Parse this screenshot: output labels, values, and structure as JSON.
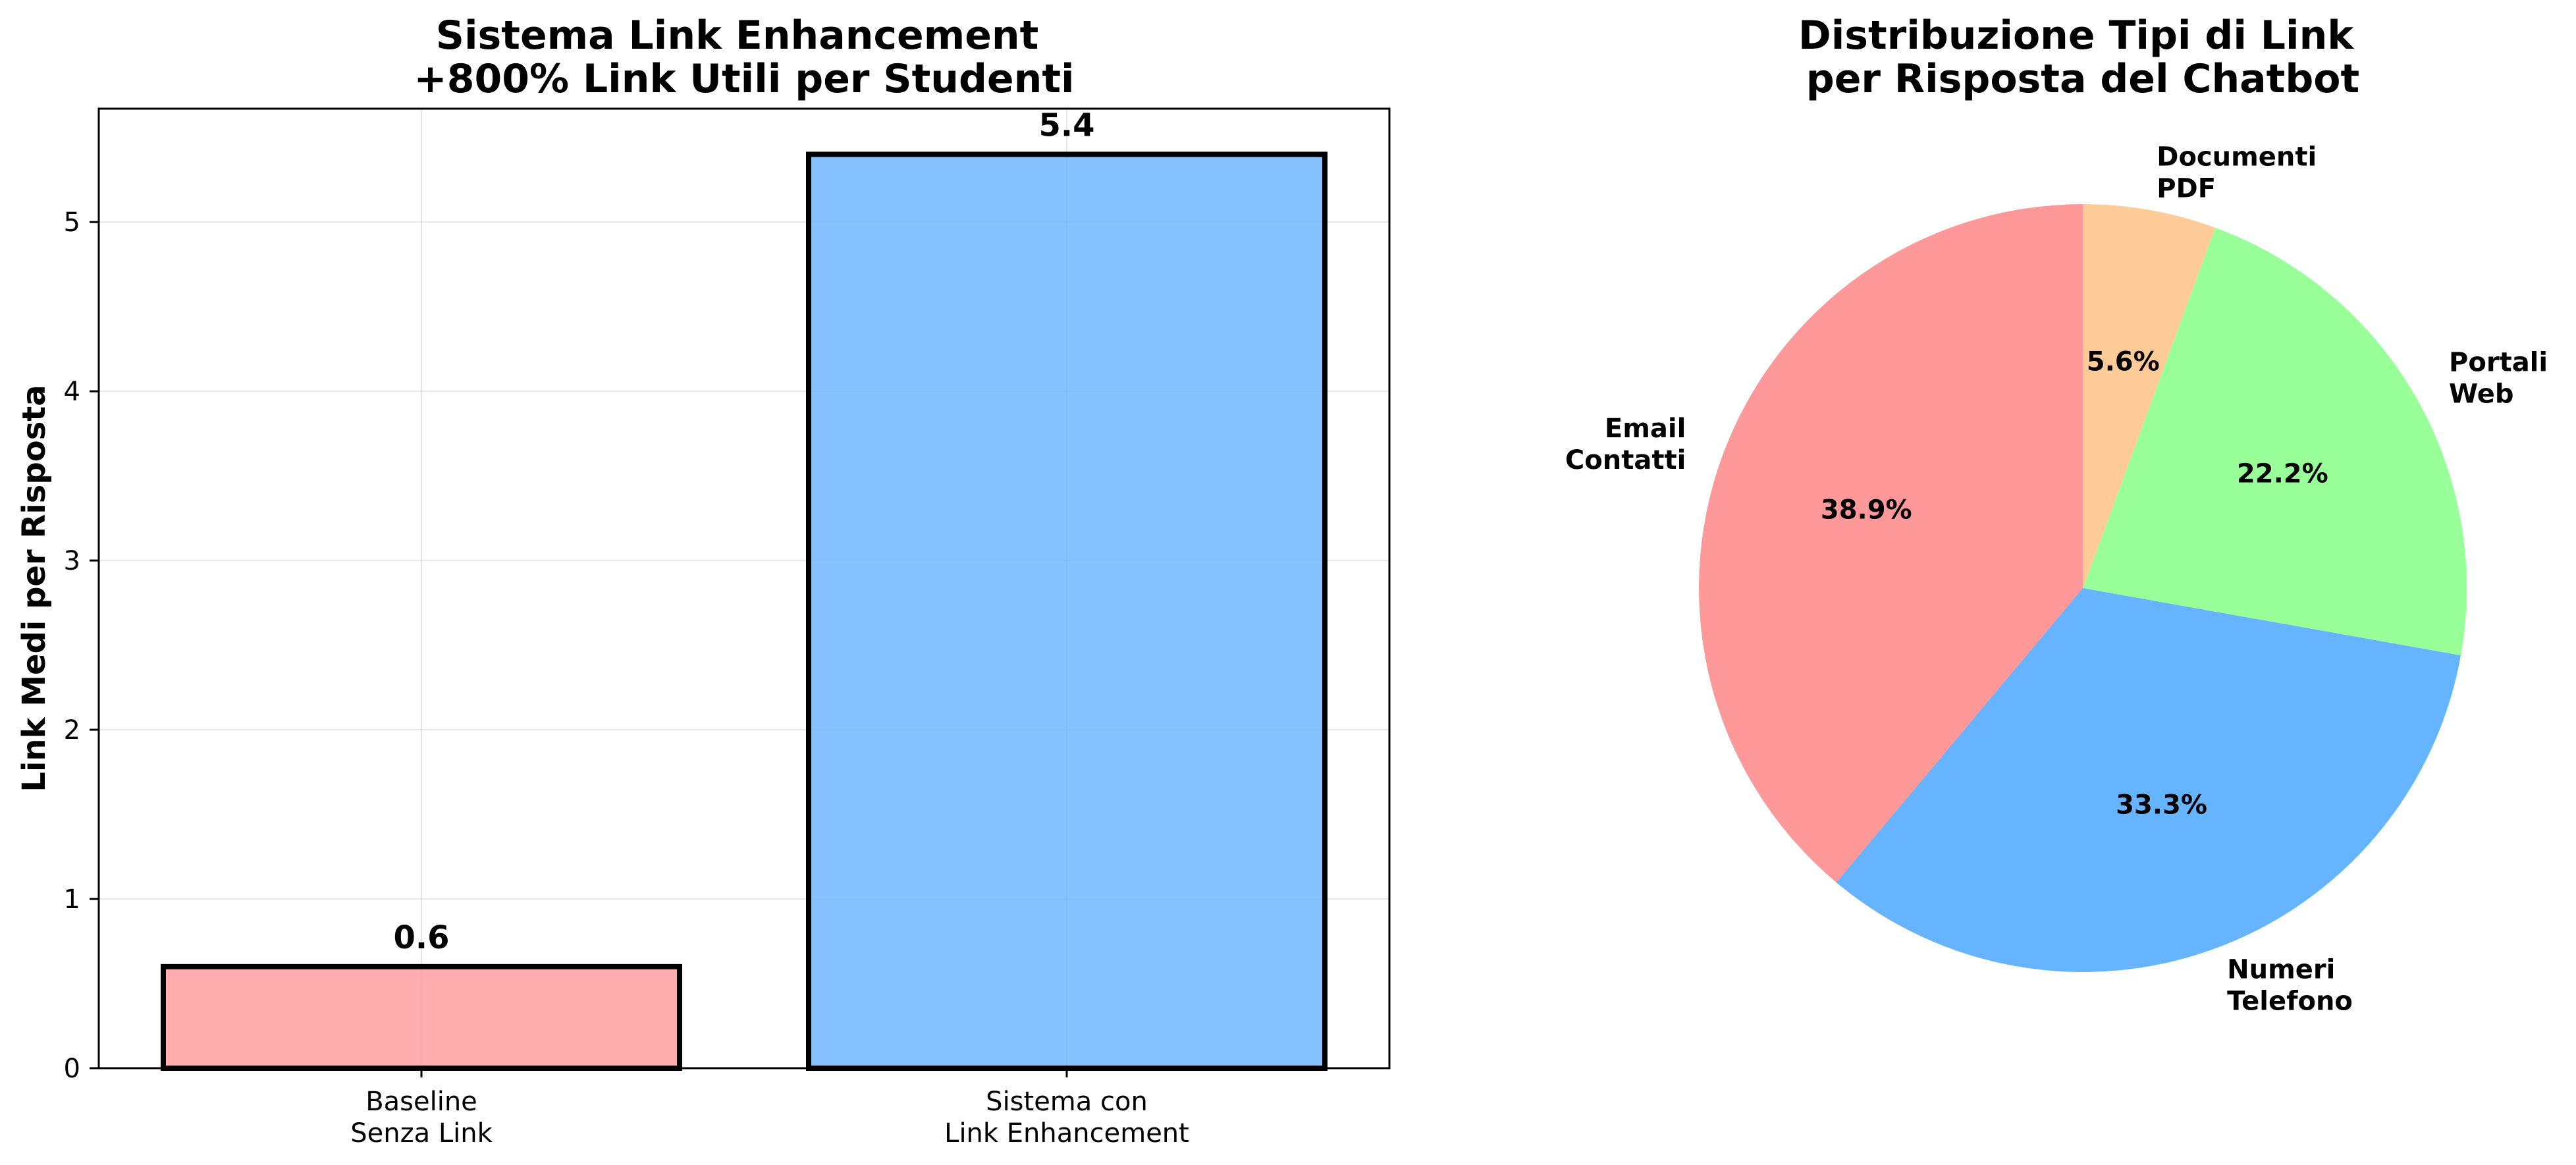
{
  "chart_data": [
    {
      "type": "bar",
      "title": [
        "Sistema Link Enhancement",
        "+800% Link Utili per Studenti"
      ],
      "ylabel": "Link Medi per Risposta",
      "xlabel": "",
      "categories": [
        [
          "Baseline",
          "Senza Link"
        ],
        [
          "Sistema con",
          "Link Enhancement"
        ]
      ],
      "values": [
        0.6,
        5.4
      ],
      "value_labels": [
        "0.6",
        "5.4"
      ],
      "colors": [
        "#ff9999",
        "#66b3ff"
      ],
      "ylim": [
        0,
        5.67
      ],
      "yticks": [
        0,
        1,
        2,
        3,
        4,
        5
      ],
      "ytick_labels": [
        "0",
        "1",
        "2",
        "3",
        "4",
        "5"
      ],
      "grid": true
    },
    {
      "type": "pie",
      "title": [
        "Distribuzione Tipi di Link",
        "per Risposta del Chatbot"
      ],
      "start_angle_deg": 90,
      "direction": "counterclockwise",
      "slices": [
        {
          "label": [
            "Email",
            "Contatti"
          ],
          "value": 38.9,
          "pct": "38.9%",
          "color": "#ff9999"
        },
        {
          "label": [
            "Numeri",
            "Telefono"
          ],
          "value": 33.3,
          "pct": "33.3%",
          "color": "#66b3ff"
        },
        {
          "label": [
            "Portali",
            "Web"
          ],
          "value": 22.2,
          "pct": "22.2%",
          "color": "#99ff99"
        },
        {
          "label": [
            "Documenti",
            "PDF"
          ],
          "value": 5.6,
          "pct": "5.6%",
          "color": "#ffcc99"
        }
      ]
    }
  ]
}
